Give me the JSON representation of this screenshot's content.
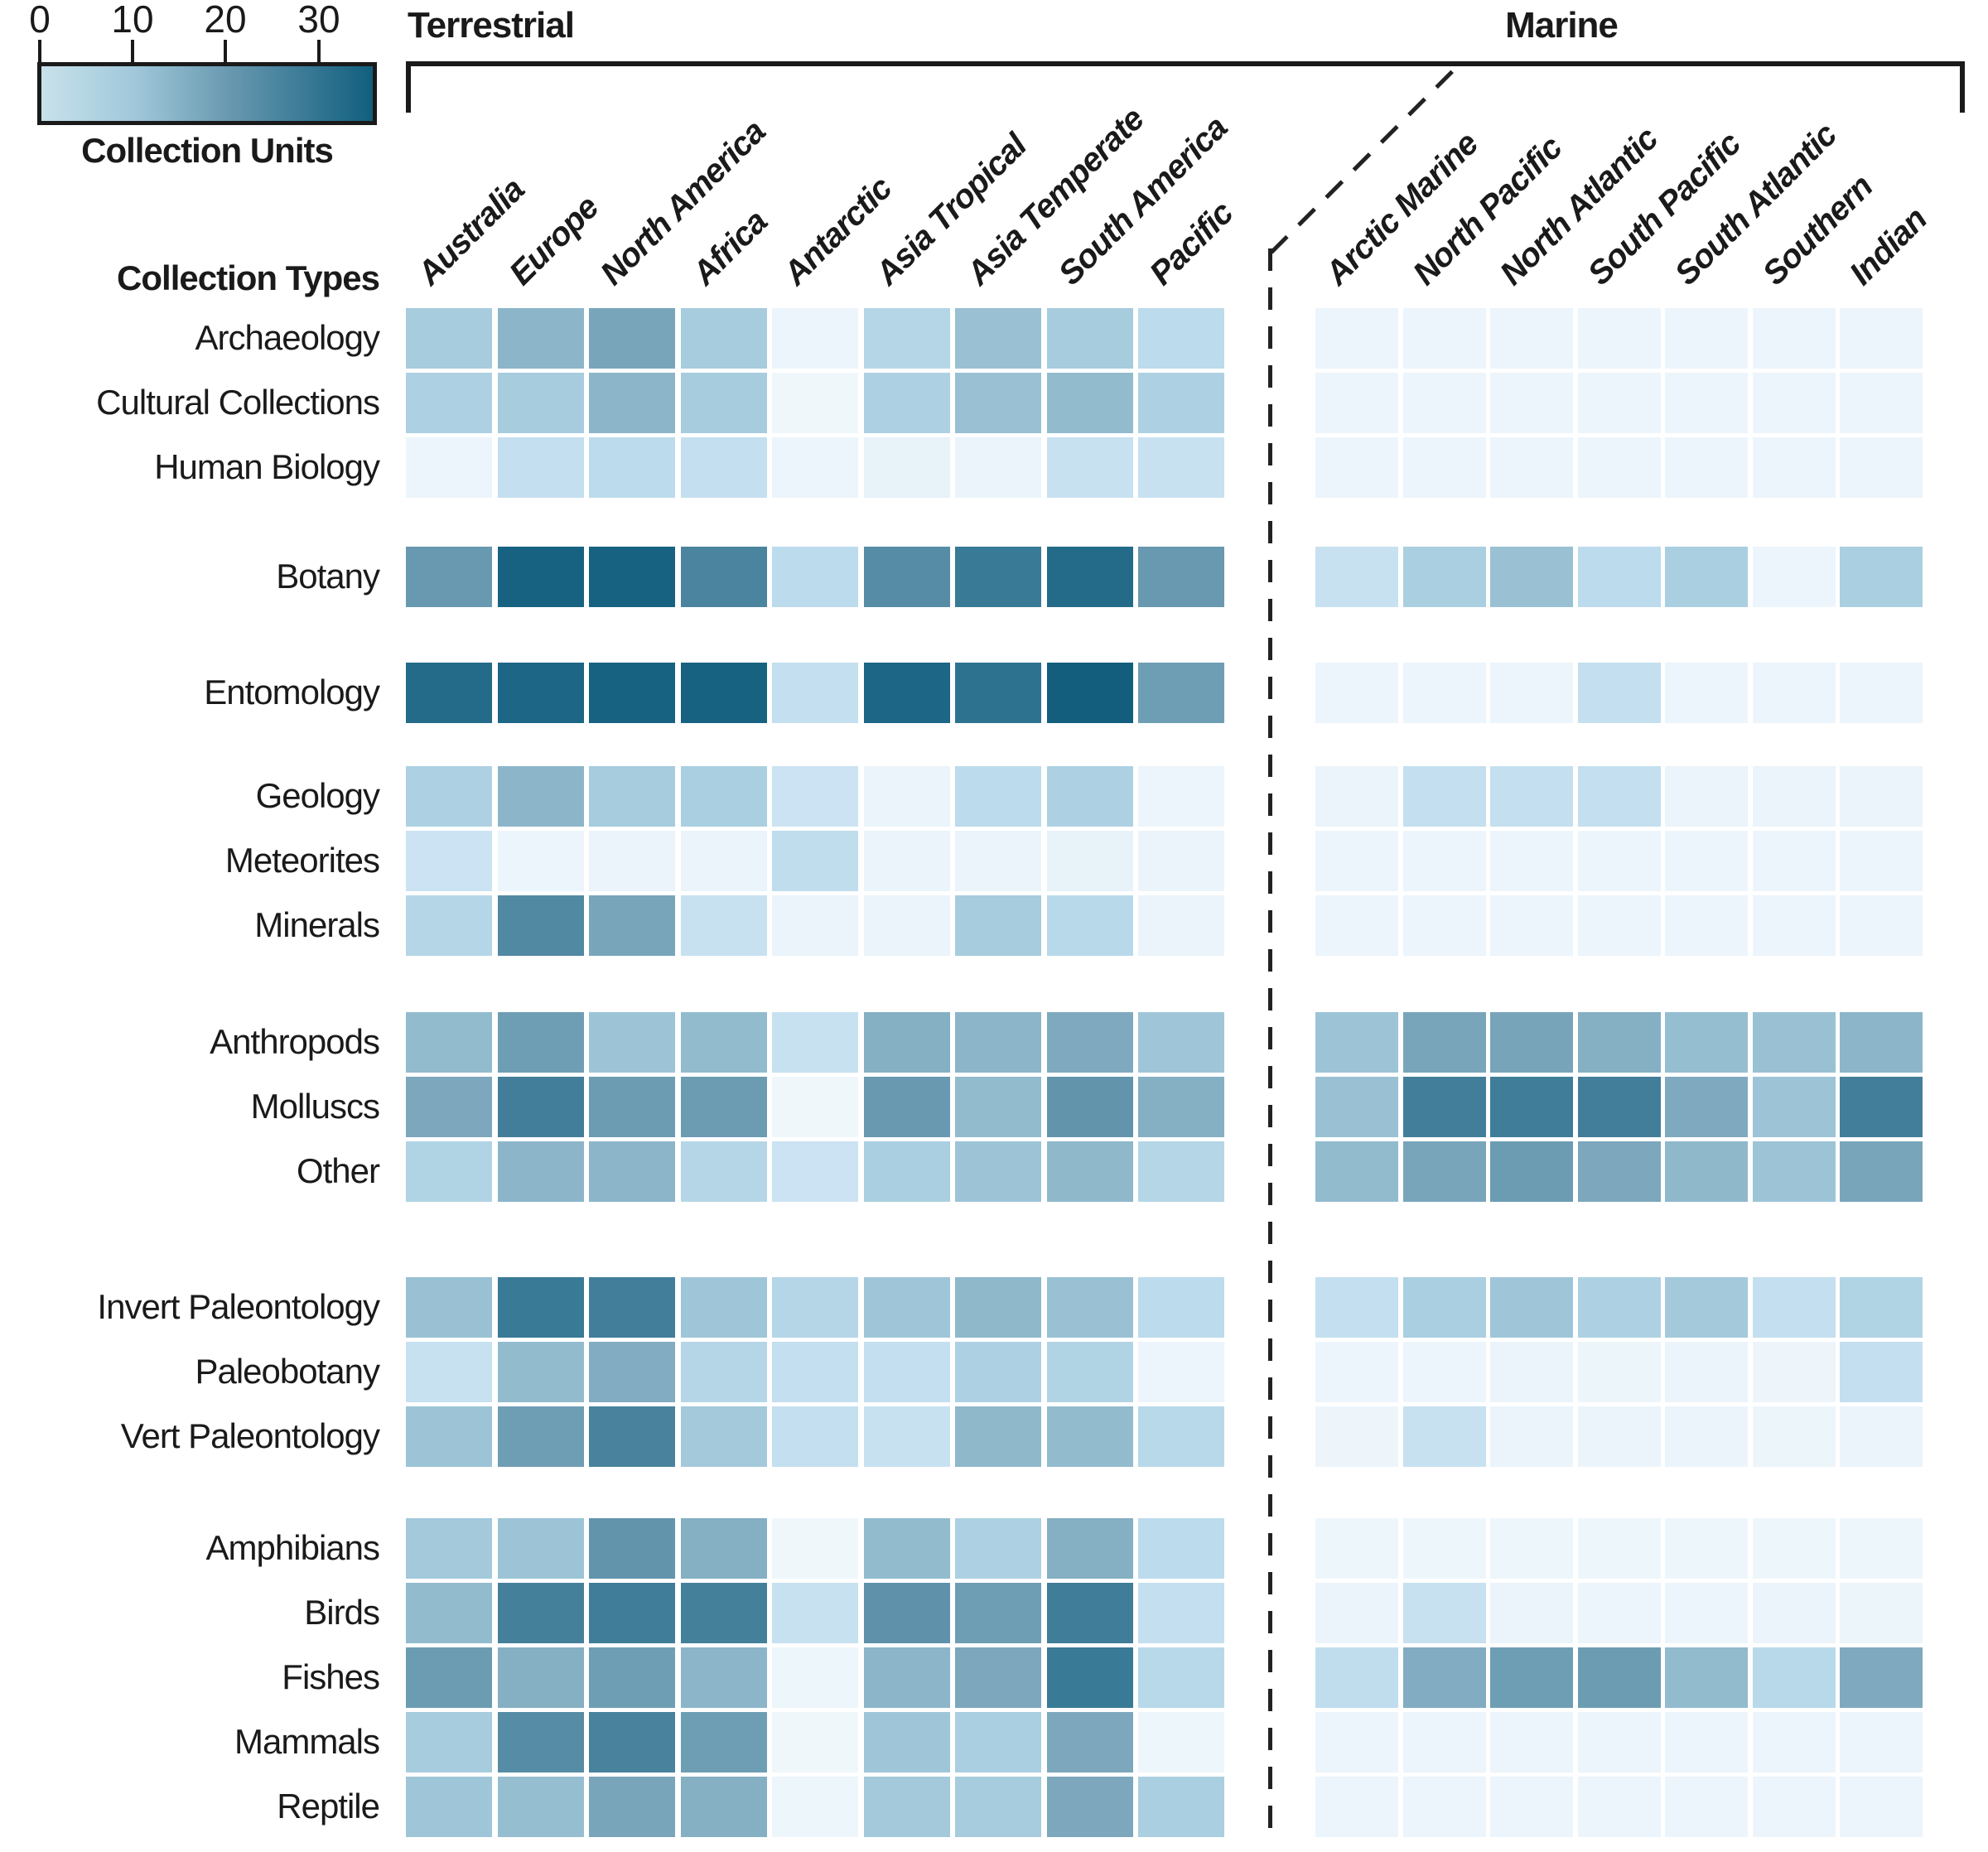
{
  "legend": {
    "ticks": [
      "0",
      "10",
      "20",
      "30"
    ],
    "label": "Collection Units",
    "min": 0,
    "max": 35
  },
  "headers": {
    "terrestrial": "Terrestrial",
    "marine": "Marine",
    "row_axis": "Collection Types"
  },
  "chart_data": {
    "type": "heatmap",
    "colorbar_label": "Collection Units",
    "value_units": "Collection Units",
    "color_scale": {
      "min": 0,
      "max": 35,
      "stops": [
        [
          0,
          "#f1f8fc"
        ],
        [
          2,
          "#e7f2f9"
        ],
        [
          5,
          "#cbe3f2"
        ],
        [
          7,
          "#bcdbec"
        ],
        [
          10,
          "#a6ccdd"
        ],
        [
          13,
          "#92bbce"
        ],
        [
          16,
          "#7fa9be"
        ],
        [
          19,
          "#6e9eb4"
        ],
        [
          22,
          "#5c90a8"
        ],
        [
          26,
          "#45809b"
        ],
        [
          30,
          "#2d7390"
        ],
        [
          35,
          "#135e7d"
        ]
      ]
    },
    "column_groups": [
      {
        "label": "Terrestrial",
        "columns": [
          "Australia",
          "Europe",
          "North America",
          "Africa",
          "Antarctic",
          "Asia Tropical",
          "Asia Temperate",
          "South America",
          "Pacific"
        ]
      },
      {
        "label": "Marine",
        "columns": [
          "Arctic Marine",
          "North Pacific",
          "North Atlantic",
          "South Pacific",
          "South Atlantic",
          "Southern",
          "Indian"
        ]
      }
    ],
    "row_axis_title": "Collection Types",
    "row_groups": [
      {
        "rows": [
          {
            "label": "Archaeology",
            "values": [
              10,
              14,
              17,
              10,
              1,
              8,
              12,
              10,
              7,
              1,
              1,
              1,
              1,
              1,
              1,
              1
            ]
          },
          {
            "label": "Cultural Collections",
            "values": [
              9,
              10,
              14,
              10,
              0.5,
              9,
              12,
              13,
              9,
              1,
              1,
              1,
              1,
              1,
              1,
              1
            ]
          },
          {
            "label": "Human Biology",
            "values": [
              1,
              6,
              7,
              6,
              1,
              2,
              1.5,
              5.5,
              5.5,
              1,
              1,
              1,
              1,
              1,
              1,
              1
            ]
          }
        ]
      },
      {
        "rows": [
          {
            "label": "Botany",
            "values": [
              20,
              34,
              34,
              25,
              7,
              23,
              28,
              32,
              20,
              5.5,
              9.5,
              12,
              7,
              9.5,
              1,
              9.5
            ]
          }
        ]
      },
      {
        "rows": [
          {
            "label": "Entomology",
            "values": [
              32,
              33,
              34,
              34,
              6,
              33,
              30,
              35,
              19,
              1,
              1,
              1,
              6,
              1,
              1,
              1
            ]
          }
        ]
      },
      {
        "rows": [
          {
            "label": "Geology",
            "values": [
              9,
              14,
              10,
              9.5,
              5,
              1.5,
              7,
              9,
              1,
              1.5,
              6,
              6,
              6,
              1.5,
              1.5,
              1.5
            ]
          },
          {
            "label": "Meteorites",
            "values": [
              5,
              1,
              1.5,
              1.5,
              6.5,
              1.5,
              1.5,
              2,
              1.5,
              1,
              1,
              1,
              1,
              1,
              1,
              1
            ]
          },
          {
            "label": "Minerals",
            "values": [
              8,
              24,
              17,
              5.5,
              1.5,
              1.5,
              10,
              7.5,
              1.5,
              1,
              1,
              1,
              1,
              1,
              1,
              1
            ]
          }
        ]
      },
      {
        "rows": [
          {
            "label": "Anthropods",
            "values": [
              13,
              19,
              11.5,
              13,
              5.5,
              15,
              14,
              16,
              11,
              11.5,
              17,
              17.5,
              15,
              12.5,
              12,
              14
            ]
          },
          {
            "label": "Molluscs",
            "values": [
              16.5,
              26.5,
              19.5,
              19.5,
              0.5,
              20,
              13,
              21,
              15,
              12,
              26.5,
              27,
              26.5,
              16,
              11.5,
              26.5
            ]
          },
          {
            "label": "Other",
            "values": [
              8.5,
              14,
              14,
              8,
              5,
              9.5,
              11.5,
              13.5,
              8,
              13,
              17,
              19.5,
              16.5,
              13.5,
              11.5,
              17
            ]
          }
        ]
      },
      {
        "rows": [
          {
            "label": "Invert Paleontology",
            "values": [
              12,
              28,
              26.5,
              11,
              8,
              11,
              13.5,
              12,
              7,
              6,
              9.5,
              11,
              9,
              10.5,
              6,
              8.5
            ]
          },
          {
            "label": "Paleobotany",
            "values": [
              5.5,
              13,
              15.5,
              8,
              6,
              6,
              9,
              8.5,
              1,
              1,
              1,
              1.2,
              1.1,
              1.2,
              0.9,
              6
            ]
          },
          {
            "label": "Vert Paleontology",
            "values": [
              11.5,
              19,
              25.5,
              10.5,
              6,
              5.5,
              13.5,
              13,
              7.5,
              0.9,
              5.5,
              1.4,
              1.2,
              1.3,
              1.1,
              1.5
            ]
          }
        ]
      },
      {
        "rows": [
          {
            "label": "Amphibians",
            "values": [
              10.5,
              11.5,
              21,
              15,
              0.5,
              13,
              9,
              15,
              7,
              0.8,
              0.8,
              0.8,
              0.8,
              0.8,
              0.8,
              0.8
            ]
          },
          {
            "label": "Birds",
            "values": [
              13,
              26,
              27,
              26,
              5.5,
              21.5,
              19,
              27,
              6,
              1.2,
              5.5,
              1.4,
              1,
              1,
              1.3,
              1.1
            ]
          },
          {
            "label": "Fishes",
            "values": [
              19.5,
              15,
              19,
              14,
              0.8,
              14,
              16.5,
              28,
              7.5,
              6.5,
              15.5,
              19,
              19.5,
              13,
              7.5,
              16
            ]
          },
          {
            "label": "Mammals",
            "values": [
              10,
              23,
              25.5,
              19,
              0.5,
              11,
              9.5,
              16.5,
              0.8,
              1,
              1,
              1,
              1,
              1,
              1,
              1
            ]
          },
          {
            "label": "Reptile",
            "values": [
              11,
              12.5,
              17,
              15,
              0.8,
              10.5,
              10,
              16.5,
              9.5,
              1,
              1,
              1,
              1,
              1,
              1,
              1
            ]
          }
        ]
      }
    ]
  }
}
